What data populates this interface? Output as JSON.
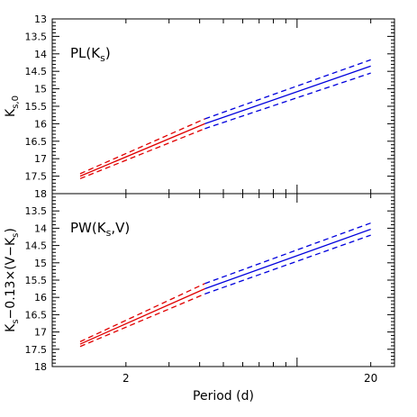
{
  "chart_data": [
    {
      "type": "line",
      "panel": "top",
      "annotation": "PL(K",
      "annotation_sub": "s",
      "annotation_tail": ")",
      "ylabel": "K",
      "ylabel_sub": "s,0",
      "ylabel_tail": "",
      "xlim": [
        1,
        25
      ],
      "ylim": [
        18,
        13
      ],
      "yticks": [
        "13",
        "13.5",
        "14",
        "14.5",
        "15",
        "15.5",
        "16",
        "16.5",
        "17",
        "17.5",
        "18"
      ],
      "x_scale": "log",
      "series": [
        {
          "color": "#e00000",
          "style": "solid",
          "x": [
            1.3,
            4.2
          ],
          "y": [
            17.5,
            16.0
          ]
        },
        {
          "color": "#e00000",
          "style": "dashed",
          "x": [
            1.3,
            4.2
          ],
          "y": [
            17.43,
            15.86
          ]
        },
        {
          "color": "#e00000",
          "style": "dashed",
          "x": [
            1.3,
            4.2
          ],
          "y": [
            17.57,
            16.14
          ]
        },
        {
          "color": "#0000dd",
          "style": "solid",
          "x": [
            4.2,
            20
          ],
          "y": [
            16.0,
            14.35
          ]
        },
        {
          "color": "#0000dd",
          "style": "dashed",
          "x": [
            4.2,
            20
          ],
          "y": [
            15.86,
            14.17
          ]
        },
        {
          "color": "#0000dd",
          "style": "dashed",
          "x": [
            4.2,
            20
          ],
          "y": [
            16.14,
            14.55
          ]
        }
      ]
    },
    {
      "type": "line",
      "panel": "bottom",
      "annotation": "PW(K",
      "annotation_sub": "s",
      "annotation_tail": ",V)",
      "ylabel": "K",
      "ylabel_sub": "s",
      "ylabel_tail": "−0.13×(V−K",
      "ylabel_sub2": "s",
      "ylabel_tail2": ")",
      "xlabel": "Period (d)",
      "xticklabels": [
        {
          "v": 2,
          "label": "2"
        },
        {
          "v": 20,
          "label": "20"
        }
      ],
      "xlim": [
        1,
        25
      ],
      "ylim": [
        18,
        13
      ],
      "yticks": [
        "13.5",
        "14",
        "14.5",
        "15",
        "15.5",
        "16",
        "16.5",
        "17",
        "17.5",
        "18"
      ],
      "x_scale": "log",
      "series": [
        {
          "color": "#e00000",
          "style": "solid",
          "x": [
            1.3,
            4.2
          ],
          "y": [
            17.35,
            15.75
          ]
        },
        {
          "color": "#e00000",
          "style": "dashed",
          "x": [
            1.3,
            4.2
          ],
          "y": [
            17.28,
            15.6
          ]
        },
        {
          "color": "#e00000",
          "style": "dashed",
          "x": [
            1.3,
            4.2
          ],
          "y": [
            17.42,
            15.9
          ]
        },
        {
          "color": "#0000dd",
          "style": "solid",
          "x": [
            4.2,
            20
          ],
          "y": [
            15.75,
            14.03
          ]
        },
        {
          "color": "#0000dd",
          "style": "dashed",
          "x": [
            4.2,
            20
          ],
          "y": [
            15.6,
            13.85
          ]
        },
        {
          "color": "#0000dd",
          "style": "dashed",
          "x": [
            4.2,
            20
          ],
          "y": [
            15.9,
            14.2
          ]
        }
      ]
    }
  ]
}
